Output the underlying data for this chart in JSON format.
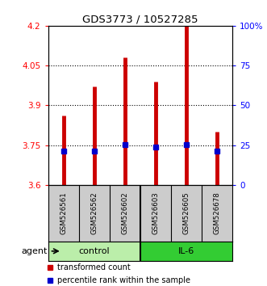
{
  "title": "GDS3773 / 10527285",
  "samples": [
    "GSM526561",
    "GSM526562",
    "GSM526602",
    "GSM526603",
    "GSM526605",
    "GSM526678"
  ],
  "red_values": [
    3.86,
    3.97,
    4.08,
    3.99,
    4.2,
    3.8
  ],
  "blue_values": [
    3.726,
    3.726,
    3.752,
    3.744,
    3.752,
    3.726
  ],
  "ylim": [
    3.6,
    4.2
  ],
  "y2lim": [
    0,
    100
  ],
  "yticks": [
    3.6,
    3.75,
    3.9,
    4.05,
    4.2
  ],
  "ytick_labels": [
    "3.6",
    "3.75",
    "3.9",
    "4.05",
    "4.2"
  ],
  "y2ticks": [
    0,
    25,
    50,
    75,
    100
  ],
  "y2tick_labels": [
    "0",
    "25",
    "50",
    "75",
    "100%"
  ],
  "red_color": "#CC0000",
  "blue_color": "#0000CC",
  "bg_color": "#FFFFFF",
  "plot_bg": "#FFFFFF",
  "sample_box_color": "#CCCCCC",
  "control_color": "#BBEEAA",
  "il6_color": "#33CC33",
  "bar_linewidth": 3.5
}
